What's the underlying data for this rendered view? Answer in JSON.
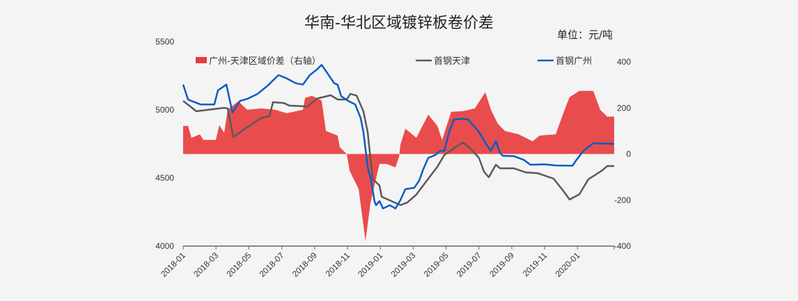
{
  "chart_data": {
    "type": "line",
    "title": "华南-华北区域镀锌板卷价差",
    "unit_label": "单位：元/吨",
    "x_unit": "months since 2018-01",
    "x_range": [
      0,
      26.23
    ],
    "x_ticks": [
      {
        "m": 0,
        "label": "2018-01"
      },
      {
        "m": 2,
        "label": "2018-03"
      },
      {
        "m": 4,
        "label": "2018-05"
      },
      {
        "m": 6,
        "label": "2018-07"
      },
      {
        "m": 8,
        "label": "2018-09"
      },
      {
        "m": 10,
        "label": "2018-11"
      },
      {
        "m": 12,
        "label": "2019-01"
      },
      {
        "m": 14,
        "label": "2019-03"
      },
      {
        "m": 16,
        "label": "2019-05"
      },
      {
        "m": 18,
        "label": "2019-07"
      },
      {
        "m": 20,
        "label": "2019-09"
      },
      {
        "m": 22,
        "label": "2019-11"
      },
      {
        "m": 24,
        "label": "2020-01"
      }
    ],
    "y_left": {
      "range": [
        4000,
        5500
      ],
      "ticks": [
        "4000",
        "4500",
        "5000",
        "5500"
      ]
    },
    "y_right": {
      "range": [
        -400,
        400
      ],
      "ticks": [
        "-400",
        "-200",
        "0",
        "200",
        "400"
      ]
    },
    "legend_position": "top",
    "series": [
      {
        "name": "广州-天津区域价差（右轴）",
        "kind": "area",
        "axis": "right",
        "color": "#e83a3a",
        "points": [
          [
            0,
            122
          ],
          [
            0.3,
            122
          ],
          [
            0.51,
            70
          ],
          [
            1.02,
            85
          ],
          [
            1.23,
            61
          ],
          [
            1.99,
            61
          ],
          [
            2.2,
            125
          ],
          [
            2.5,
            92
          ],
          [
            2.71,
            192
          ],
          [
            3.35,
            229
          ],
          [
            3.9,
            192
          ],
          [
            4.75,
            198
          ],
          [
            5.59,
            192
          ],
          [
            6.31,
            177
          ],
          [
            7.29,
            192
          ],
          [
            7.42,
            244
          ],
          [
            7.84,
            253
          ],
          [
            8.43,
            232
          ],
          [
            8.69,
            100
          ],
          [
            9.4,
            80
          ],
          [
            9.53,
            30
          ],
          [
            9.96,
            0
          ],
          [
            10.13,
            -73
          ],
          [
            10.68,
            -152
          ],
          [
            11.1,
            -378
          ],
          [
            11.4,
            -214
          ],
          [
            11.65,
            -134
          ],
          [
            11.95,
            -43
          ],
          [
            12.37,
            -43
          ],
          [
            12.92,
            -58
          ],
          [
            13.14,
            -12
          ],
          [
            13.22,
            40
          ],
          [
            13.52,
            110
          ],
          [
            14.19,
            70
          ],
          [
            14.92,
            171
          ],
          [
            15.47,
            122
          ],
          [
            15.76,
            61
          ],
          [
            16.31,
            183
          ],
          [
            17.03,
            186
          ],
          [
            17.75,
            198
          ],
          [
            18.39,
            268
          ],
          [
            18.73,
            192
          ],
          [
            19.15,
            131
          ],
          [
            19.58,
            100
          ],
          [
            20.42,
            85
          ],
          [
            21.27,
            55
          ],
          [
            21.69,
            80
          ],
          [
            22.67,
            85
          ],
          [
            23.26,
            201
          ],
          [
            23.52,
            247
          ],
          [
            24.11,
            274
          ],
          [
            24.96,
            274
          ],
          [
            25.38,
            192
          ],
          [
            25.8,
            162
          ],
          [
            26.23,
            162
          ]
        ]
      },
      {
        "name": "首钢天津",
        "kind": "line",
        "axis": "left",
        "color": "#595959",
        "points": [
          [
            0,
            5066
          ],
          [
            0.8,
            4990
          ],
          [
            2.5,
            5015
          ],
          [
            2.71,
            5010
          ],
          [
            3.05,
            4800
          ],
          [
            3.9,
            4872
          ],
          [
            4.75,
            4939
          ],
          [
            5.25,
            4954
          ],
          [
            5.47,
            5056
          ],
          [
            6.14,
            5050
          ],
          [
            6.44,
            5031
          ],
          [
            7.58,
            5025
          ],
          [
            8.14,
            5082
          ],
          [
            8.98,
            5107
          ],
          [
            9.4,
            5076
          ],
          [
            9.96,
            5076
          ],
          [
            10.17,
            5117
          ],
          [
            10.55,
            5105
          ],
          [
            10.97,
            4990
          ],
          [
            11.23,
            4837
          ],
          [
            11.53,
            4495
          ],
          [
            11.95,
            4444
          ],
          [
            12.08,
            4362
          ],
          [
            13.22,
            4301
          ],
          [
            13.64,
            4320
          ],
          [
            14.19,
            4378
          ],
          [
            14.92,
            4495
          ],
          [
            15.47,
            4582
          ],
          [
            15.89,
            4668
          ],
          [
            16.48,
            4719
          ],
          [
            17.03,
            4760
          ],
          [
            17.46,
            4719
          ],
          [
            18.0,
            4648
          ],
          [
            18.31,
            4546
          ],
          [
            18.6,
            4505
          ],
          [
            19.03,
            4597
          ],
          [
            19.28,
            4571
          ],
          [
            20.13,
            4571
          ],
          [
            20.85,
            4541
          ],
          [
            21.57,
            4535
          ],
          [
            22.54,
            4495
          ],
          [
            23.09,
            4413
          ],
          [
            23.52,
            4342
          ],
          [
            24.11,
            4380
          ],
          [
            24.66,
            4490
          ],
          [
            25.51,
            4556
          ],
          [
            25.8,
            4587
          ],
          [
            26.23,
            4587
          ]
        ]
      },
      {
        "name": "首钢广州",
        "kind": "line",
        "axis": "left",
        "color": "#0a5cc2",
        "points": [
          [
            0,
            5185
          ],
          [
            0.3,
            5075
          ],
          [
            1.06,
            5040
          ],
          [
            1.9,
            5040
          ],
          [
            2.12,
            5143
          ],
          [
            2.63,
            5185
          ],
          [
            3.0,
            4980
          ],
          [
            3.47,
            5066
          ],
          [
            3.9,
            5080
          ],
          [
            4.53,
            5117
          ],
          [
            5.17,
            5180
          ],
          [
            5.59,
            5230
          ],
          [
            5.8,
            5255
          ],
          [
            6.23,
            5235
          ],
          [
            6.86,
            5195
          ],
          [
            7.29,
            5185
          ],
          [
            7.71,
            5255
          ],
          [
            8.14,
            5296
          ],
          [
            8.43,
            5330
          ],
          [
            8.77,
            5270
          ],
          [
            9.19,
            5195
          ],
          [
            9.4,
            5185
          ],
          [
            9.62,
            5100
          ],
          [
            10.04,
            5066
          ],
          [
            10.47,
            5040
          ],
          [
            10.8,
            4940
          ],
          [
            10.97,
            4837
          ],
          [
            11.23,
            4582
          ],
          [
            11.44,
            4480
          ],
          [
            11.65,
            4327
          ],
          [
            11.74,
            4300
          ],
          [
            11.95,
            4330
          ],
          [
            12.16,
            4276
          ],
          [
            12.58,
            4300
          ],
          [
            12.92,
            4276
          ],
          [
            13.22,
            4337
          ],
          [
            13.52,
            4418
          ],
          [
            14.07,
            4428
          ],
          [
            14.36,
            4480
          ],
          [
            14.62,
            4566
          ],
          [
            14.92,
            4648
          ],
          [
            15.34,
            4668
          ],
          [
            15.64,
            4699
          ],
          [
            15.89,
            4699
          ],
          [
            16.19,
            4837
          ],
          [
            16.48,
            4929
          ],
          [
            17.03,
            4934
          ],
          [
            17.33,
            4929
          ],
          [
            17.58,
            4898
          ],
          [
            18.0,
            4837
          ],
          [
            18.43,
            4750
          ],
          [
            18.73,
            4699
          ],
          [
            19.03,
            4770
          ],
          [
            19.28,
            4684
          ],
          [
            19.45,
            4663
          ],
          [
            20.13,
            4660
          ],
          [
            20.72,
            4633
          ],
          [
            21.14,
            4597
          ],
          [
            21.99,
            4600
          ],
          [
            22.67,
            4592
          ],
          [
            23.69,
            4590
          ],
          [
            23.94,
            4633
          ],
          [
            24.36,
            4699
          ],
          [
            24.96,
            4755
          ],
          [
            26.23,
            4750
          ]
        ]
      }
    ]
  }
}
